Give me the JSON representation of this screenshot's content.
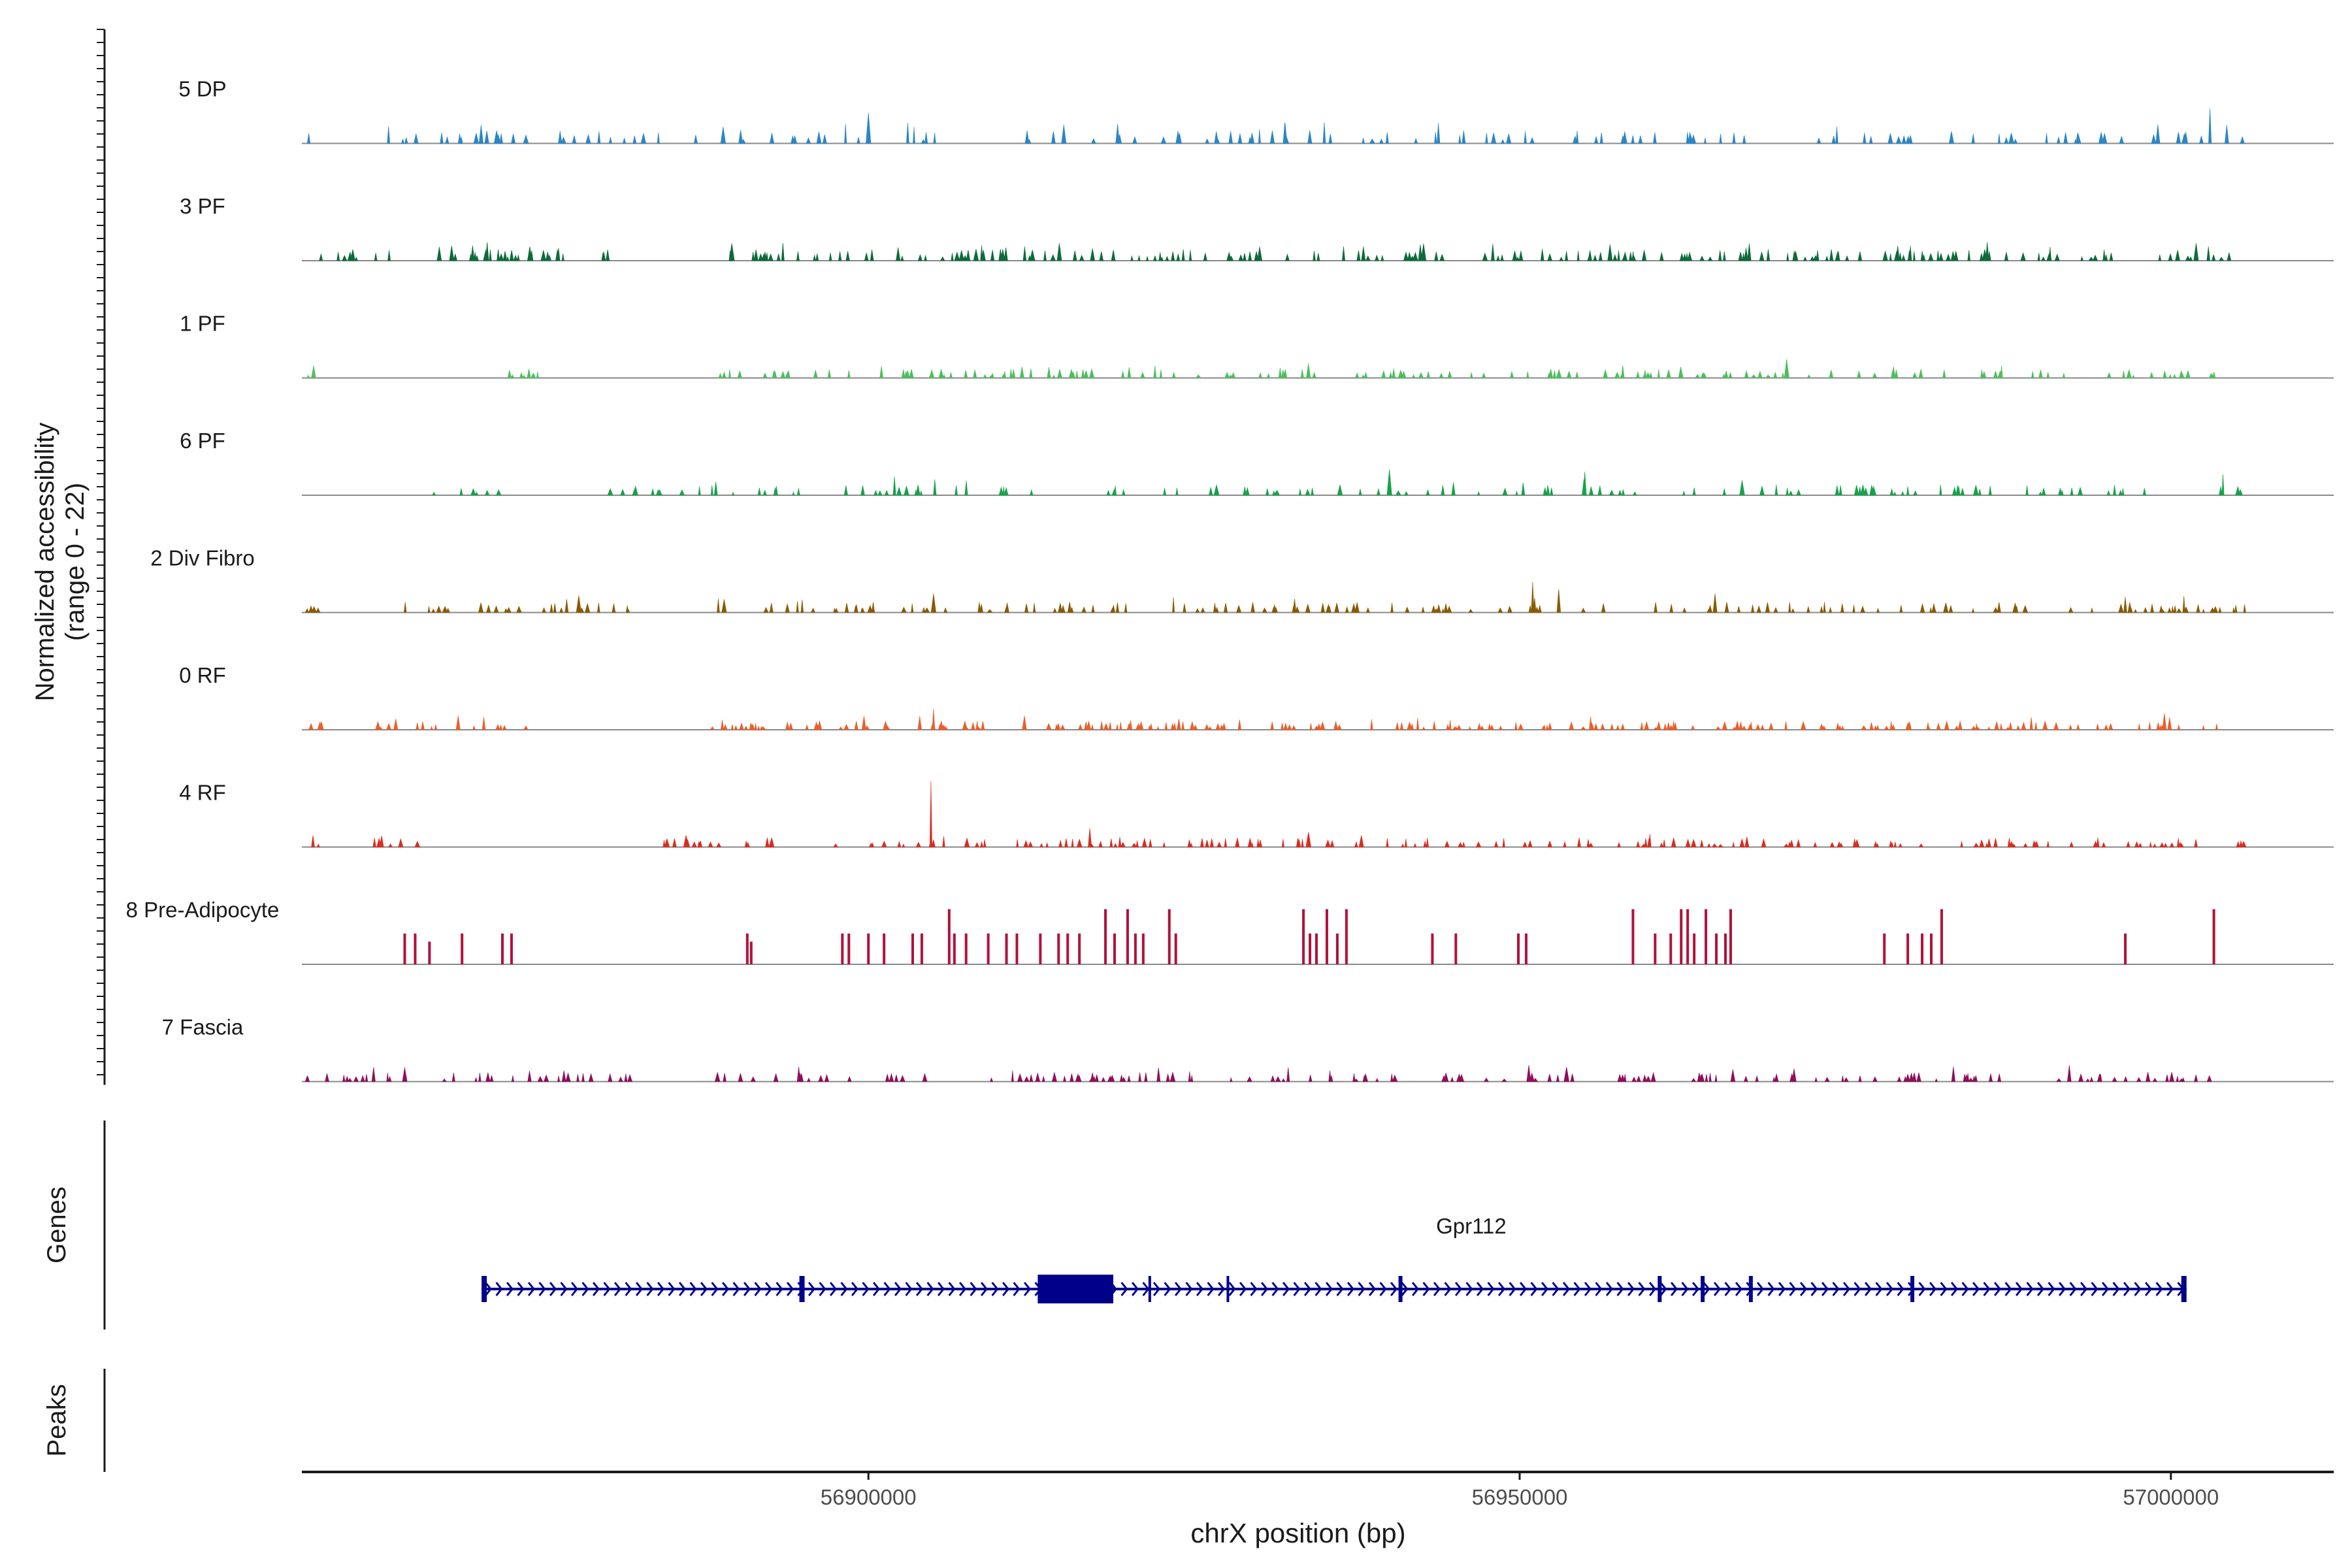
{
  "chart_data": {
    "type": "area",
    "title": "",
    "region": "chrX",
    "xlabel": "chrX position (bp)",
    "xlim": [
      56856500,
      57012500
    ],
    "x_ticks": [
      {
        "value": 56900000,
        "label": "56900000"
      },
      {
        "value": 56950000,
        "label": "56950000"
      },
      {
        "value": 57000000,
        "label": "57000000"
      }
    ],
    "coverage_ylabel": "Normalized accessibility\n(range 0 - 22)",
    "coverage_ylim": [
      0,
      22
    ],
    "data_span": [
      56856500,
      57005500
    ],
    "tracks": [
      {
        "name": "5 DP",
        "color": "#2b86c5",
        "seed": 11,
        "density": 0.16,
        "base": 2.2,
        "peaks": [
          [
            56900000,
            6.5
          ],
          [
            56903500,
            3.5
          ],
          [
            56915000,
            4.0
          ],
          [
            56932000,
            4.2
          ],
          [
            56935000,
            4.5
          ],
          [
            56999000,
            4.0
          ],
          [
            57003000,
            7.5
          ]
        ],
        "gaps": [
          [
            56858000,
            56863000
          ],
          [
            56906000,
            56910000
          ],
          [
            56968000,
            56972000
          ]
        ]
      },
      {
        "name": "3 PF",
        "color": "#0d6b3a",
        "seed": 23,
        "density": 0.22,
        "base": 2.0,
        "peaks": [
          [
            56868000,
            3.2
          ],
          [
            56874000,
            3.0
          ],
          [
            56912000,
            3.0
          ],
          [
            56938000,
            3.0
          ],
          [
            56980000,
            3.2
          ]
        ],
        "gaps": [
          [
            56880000,
            56888000
          ],
          [
            56996000,
            56999000
          ]
        ]
      },
      {
        "name": "1 PF",
        "color": "#4dbe5d",
        "seed": 37,
        "density": 0.18,
        "base": 1.6,
        "peaks": [
          [
            56901000,
            2.5
          ],
          [
            56922000,
            2.6
          ],
          [
            56970500,
            4.0
          ],
          [
            56987000,
            2.6
          ]
        ],
        "gaps": [
          [
            56858000,
            56871000
          ],
          [
            56875000,
            56888000
          ]
        ]
      },
      {
        "name": "6 PF",
        "color": "#16a34a",
        "seed": 41,
        "density": 0.16,
        "base": 1.8,
        "peaks": [
          [
            56902000,
            4.0
          ],
          [
            56955000,
            5.0
          ],
          [
            56940000,
            5.5
          ],
          [
            57004000,
            4.5
          ]
        ],
        "gaps": [
          [
            56858000,
            56865000
          ],
          [
            56872000,
            56880000
          ],
          [
            56998000,
            57003000
          ]
        ]
      },
      {
        "name": "2 Div Fibro",
        "color": "#8a5a00",
        "seed": 53,
        "density": 0.2,
        "base": 1.8,
        "peaks": [
          [
            56905000,
            4.0
          ],
          [
            56951000,
            6.5
          ],
          [
            56953000,
            5.0
          ],
          [
            56965000,
            4.0
          ],
          [
            57001000,
            3.5
          ]
        ],
        "gaps": [
          [
            56858000,
            56864000
          ],
          [
            56882000,
            56888000
          ]
        ]
      },
      {
        "name": "0 RF",
        "color": "#e8602c",
        "seed": 67,
        "density": 0.22,
        "base": 1.5,
        "peaks": [
          [
            56868500,
            3.0
          ],
          [
            56905000,
            4.5
          ],
          [
            56999500,
            3.5
          ]
        ],
        "gaps": [
          [
            56858000,
            56862000
          ],
          [
            56876000,
            56888000
          ]
        ]
      },
      {
        "name": "4 RF",
        "color": "#d92d20",
        "seed": 79,
        "density": 0.2,
        "base": 1.6,
        "peaks": [
          [
            56904800,
            14.0
          ],
          [
            56886000,
            2.5
          ],
          [
            56917000,
            4.0
          ],
          [
            56960000,
            2.8
          ]
        ],
        "gaps": [
          [
            56858000,
            56862000
          ],
          [
            56866000,
            56882000
          ]
        ]
      },
      {
        "name": "8 Pre-Adipocyte",
        "color": "#b0123b",
        "seed": 97,
        "density": 0,
        "base": 0,
        "bars": [
          [
            56864400,
            9.5
          ],
          [
            56865200,
            9.5
          ],
          [
            56866300,
            7.0
          ],
          [
            56868800,
            9.5
          ],
          [
            56871900,
            9.5
          ],
          [
            56872600,
            9.5
          ],
          [
            56890700,
            9.5
          ],
          [
            56891000,
            7.0
          ],
          [
            56898000,
            9.5
          ],
          [
            56898500,
            9.5
          ],
          [
            56900000,
            9.5
          ],
          [
            56901200,
            9.5
          ],
          [
            56903400,
            9.5
          ],
          [
            56904100,
            9.5
          ],
          [
            56906200,
            17.0
          ],
          [
            56906600,
            9.5
          ],
          [
            56907500,
            9.5
          ],
          [
            56909200,
            9.5
          ],
          [
            56910600,
            9.5
          ],
          [
            56911400,
            9.5
          ],
          [
            56913200,
            9.5
          ],
          [
            56914600,
            9.5
          ],
          [
            56915300,
            9.5
          ],
          [
            56916200,
            9.5
          ],
          [
            56918200,
            17.0
          ],
          [
            56918900,
            9.5
          ],
          [
            56919900,
            17.0
          ],
          [
            56920500,
            9.5
          ],
          [
            56921100,
            9.5
          ],
          [
            56923100,
            17.0
          ],
          [
            56923600,
            9.5
          ],
          [
            56933400,
            17.0
          ],
          [
            56933900,
            9.5
          ],
          [
            56934400,
            9.5
          ],
          [
            56935200,
            17.0
          ],
          [
            56936000,
            9.5
          ],
          [
            56936700,
            17.0
          ],
          [
            56943300,
            9.5
          ],
          [
            56945100,
            9.5
          ],
          [
            56949900,
            9.5
          ],
          [
            56950500,
            9.5
          ],
          [
            56958700,
            17.0
          ],
          [
            56960400,
            9.5
          ],
          [
            56961600,
            9.5
          ],
          [
            56962400,
            17.0
          ],
          [
            56962900,
            17.0
          ],
          [
            56963400,
            9.5
          ],
          [
            56964300,
            17.0
          ],
          [
            56965100,
            9.5
          ],
          [
            56965800,
            9.5
          ],
          [
            56966200,
            17.0
          ],
          [
            56978000,
            9.5
          ],
          [
            56979800,
            9.5
          ],
          [
            56980900,
            9.5
          ],
          [
            56981600,
            9.5
          ],
          [
            56982400,
            17.0
          ],
          [
            56996500,
            9.5
          ],
          [
            57003300,
            17.0
          ]
        ]
      },
      {
        "name": "7 Fascia",
        "color": "#8e0f5a",
        "seed": 109,
        "density": 0.18,
        "base": 1.6,
        "peaks": [
          [
            56864400,
            3.0
          ],
          [
            56950700,
            3.5
          ],
          [
            56983300,
            3.2
          ],
          [
            56992200,
            3.5
          ]
        ],
        "gaps": [
          [
            56882000,
            56888000
          ],
          [
            56987000,
            56990000
          ],
          [
            57004500,
            57012500
          ]
        ]
      }
    ],
    "genes_label": "Genes",
    "gene": {
      "name": "Gpr112",
      "start": 56870300,
      "end": 57001200,
      "strand": "+",
      "color": "#00008b",
      "exons": [
        [
          56870300,
          56870700
        ],
        [
          56894700,
          56895100
        ],
        [
          56913000,
          56918800
        ],
        [
          56921500,
          56921700
        ],
        [
          56927500,
          56927700
        ],
        [
          56940700,
          56941000
        ],
        [
          56960600,
          56960900
        ],
        [
          56963900,
          56964200
        ],
        [
          56967600,
          56967900
        ],
        [
          56980000,
          56980300
        ],
        [
          57000800,
          57001200
        ]
      ]
    },
    "peaks_label": "Peaks",
    "peaks": []
  }
}
